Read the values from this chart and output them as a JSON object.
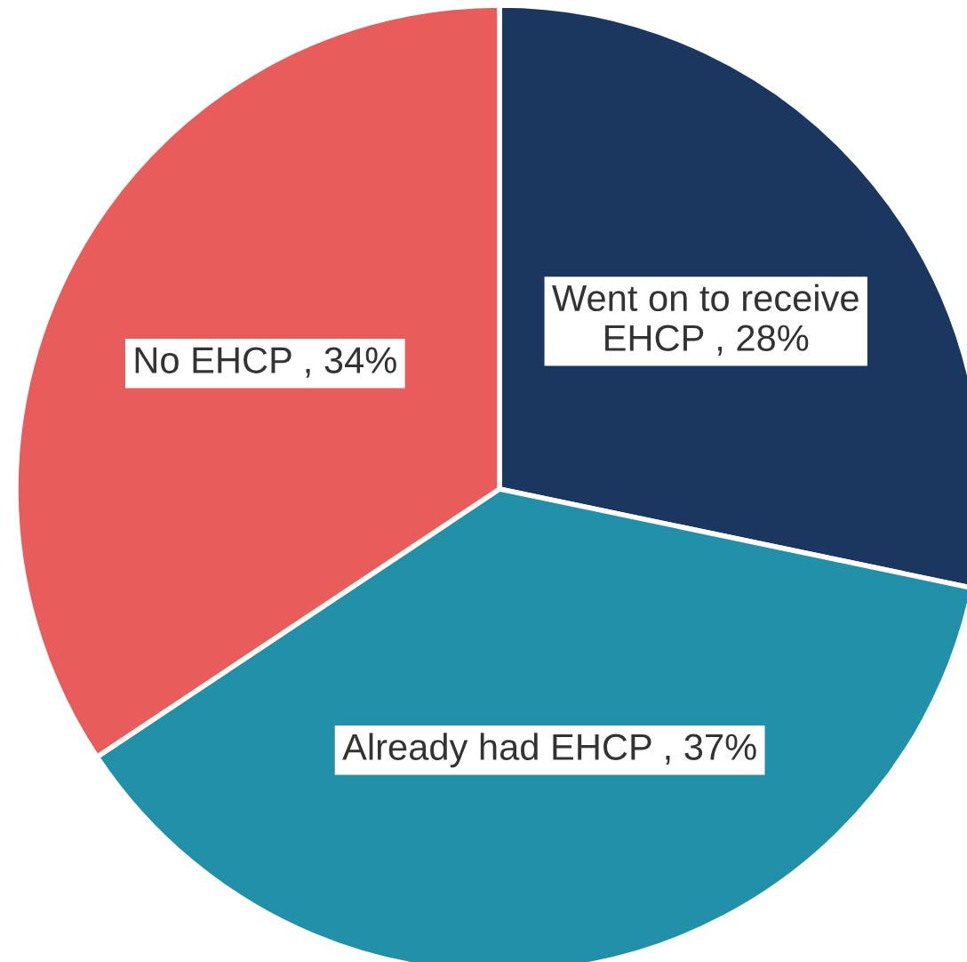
{
  "chart_data": {
    "type": "pie",
    "categories": [
      "Went on to receive EHCP",
      "Already had EHCP",
      "No EHCP"
    ],
    "values": [
      28,
      37,
      34
    ],
    "colors": [
      "#1b365f",
      "#2190a8",
      "#e85d5c"
    ],
    "value_labels": [
      "28%",
      "37%",
      "34%"
    ],
    "legend": false
  }
}
